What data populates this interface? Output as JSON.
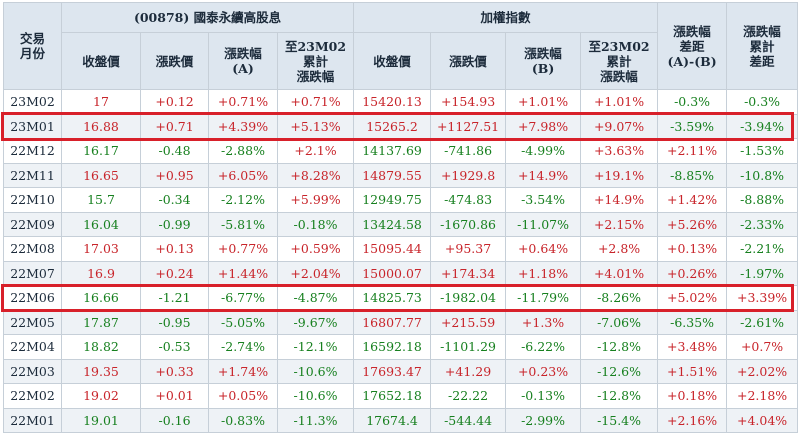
{
  "headers": {
    "month": "交易\n月份",
    "group_etf": "(00878) 國泰永續高股息",
    "group_index": "加權指數",
    "etf_close": "收盤價",
    "etf_change": "漲跌價",
    "etf_pct": "漲跌幅\n(A)",
    "etf_cum": "至23M02\n累計\n漲跌幅",
    "idx_close": "收盤價",
    "idx_change": "漲跌價",
    "idx_pct": "漲跌幅\n(B)",
    "idx_cum": "至23M02\n累計\n漲跌幅",
    "diff": "漲跌幅\n差距\n(A)-(B)",
    "cum_diff": "漲跌幅\n累計\n差距"
  },
  "rows": [
    [
      "23M02",
      "17",
      "+0.12",
      "+0.71%",
      "+0.71%",
      "15420.13",
      "+154.93",
      "+1.01%",
      "+1.01%",
      "-0.3%",
      "-0.3%"
    ],
    [
      "23M01",
      "16.88",
      "+0.71",
      "+4.39%",
      "+5.13%",
      "15265.2",
      "+1127.51",
      "+7.98%",
      "+9.07%",
      "-3.59%",
      "-3.94%"
    ],
    [
      "22M12",
      "16.17",
      "-0.48",
      "-2.88%",
      "+2.1%",
      "14137.69",
      "-741.86",
      "-4.99%",
      "+3.63%",
      "+2.11%",
      "-1.53%"
    ],
    [
      "22M11",
      "16.65",
      "+0.95",
      "+6.05%",
      "+8.28%",
      "14879.55",
      "+1929.8",
      "+14.9%",
      "+19.1%",
      "-8.85%",
      "-10.8%"
    ],
    [
      "22M10",
      "15.7",
      "-0.34",
      "-2.12%",
      "+5.99%",
      "12949.75",
      "-474.83",
      "-3.54%",
      "+14.9%",
      "+1.42%",
      "-8.88%"
    ],
    [
      "22M09",
      "16.04",
      "-0.99",
      "-5.81%",
      "-0.18%",
      "13424.58",
      "-1670.86",
      "-11.07%",
      "+2.15%",
      "+5.26%",
      "-2.33%"
    ],
    [
      "22M08",
      "17.03",
      "+0.13",
      "+0.77%",
      "+0.59%",
      "15095.44",
      "+95.37",
      "+0.64%",
      "+2.8%",
      "+0.13%",
      "-2.21%"
    ],
    [
      "22M07",
      "16.9",
      "+0.24",
      "+1.44%",
      "+2.04%",
      "15000.07",
      "+174.34",
      "+1.18%",
      "+4.01%",
      "+0.26%",
      "-1.97%"
    ],
    [
      "22M06",
      "16.66",
      "-1.21",
      "-6.77%",
      "-4.87%",
      "14825.73",
      "-1982.04",
      "-11.79%",
      "-8.26%",
      "+5.02%",
      "+3.39%"
    ],
    [
      "22M05",
      "17.87",
      "-0.95",
      "-5.05%",
      "-9.67%",
      "16807.77",
      "+215.59",
      "+1.3%",
      "-7.06%",
      "-6.35%",
      "-2.61%"
    ],
    [
      "22M04",
      "18.82",
      "-0.53",
      "-2.74%",
      "-12.1%",
      "16592.18",
      "-1101.29",
      "-6.22%",
      "-12.8%",
      "+3.48%",
      "+0.7%"
    ],
    [
      "22M03",
      "19.35",
      "+0.33",
      "+1.74%",
      "-10.6%",
      "17693.47",
      "+41.29",
      "+0.23%",
      "-12.6%",
      "+1.51%",
      "+2.02%"
    ],
    [
      "22M02",
      "19.02",
      "+0.01",
      "+0.05%",
      "-10.6%",
      "17652.18",
      "-22.22",
      "-0.13%",
      "-12.8%",
      "+0.18%",
      "+2.18%"
    ],
    [
      "22M01",
      "19.01",
      "-0.16",
      "-0.83%",
      "-11.3%",
      "17674.4",
      "-544.44",
      "-2.99%",
      "-15.4%",
      "+2.16%",
      "+4.04%"
    ]
  ],
  "colors": {
    "positive": "#c8242a",
    "negative": "#17801f",
    "highlight": "#d8202a"
  },
  "highlighted_months": [
    "23M01",
    "22M06"
  ]
}
